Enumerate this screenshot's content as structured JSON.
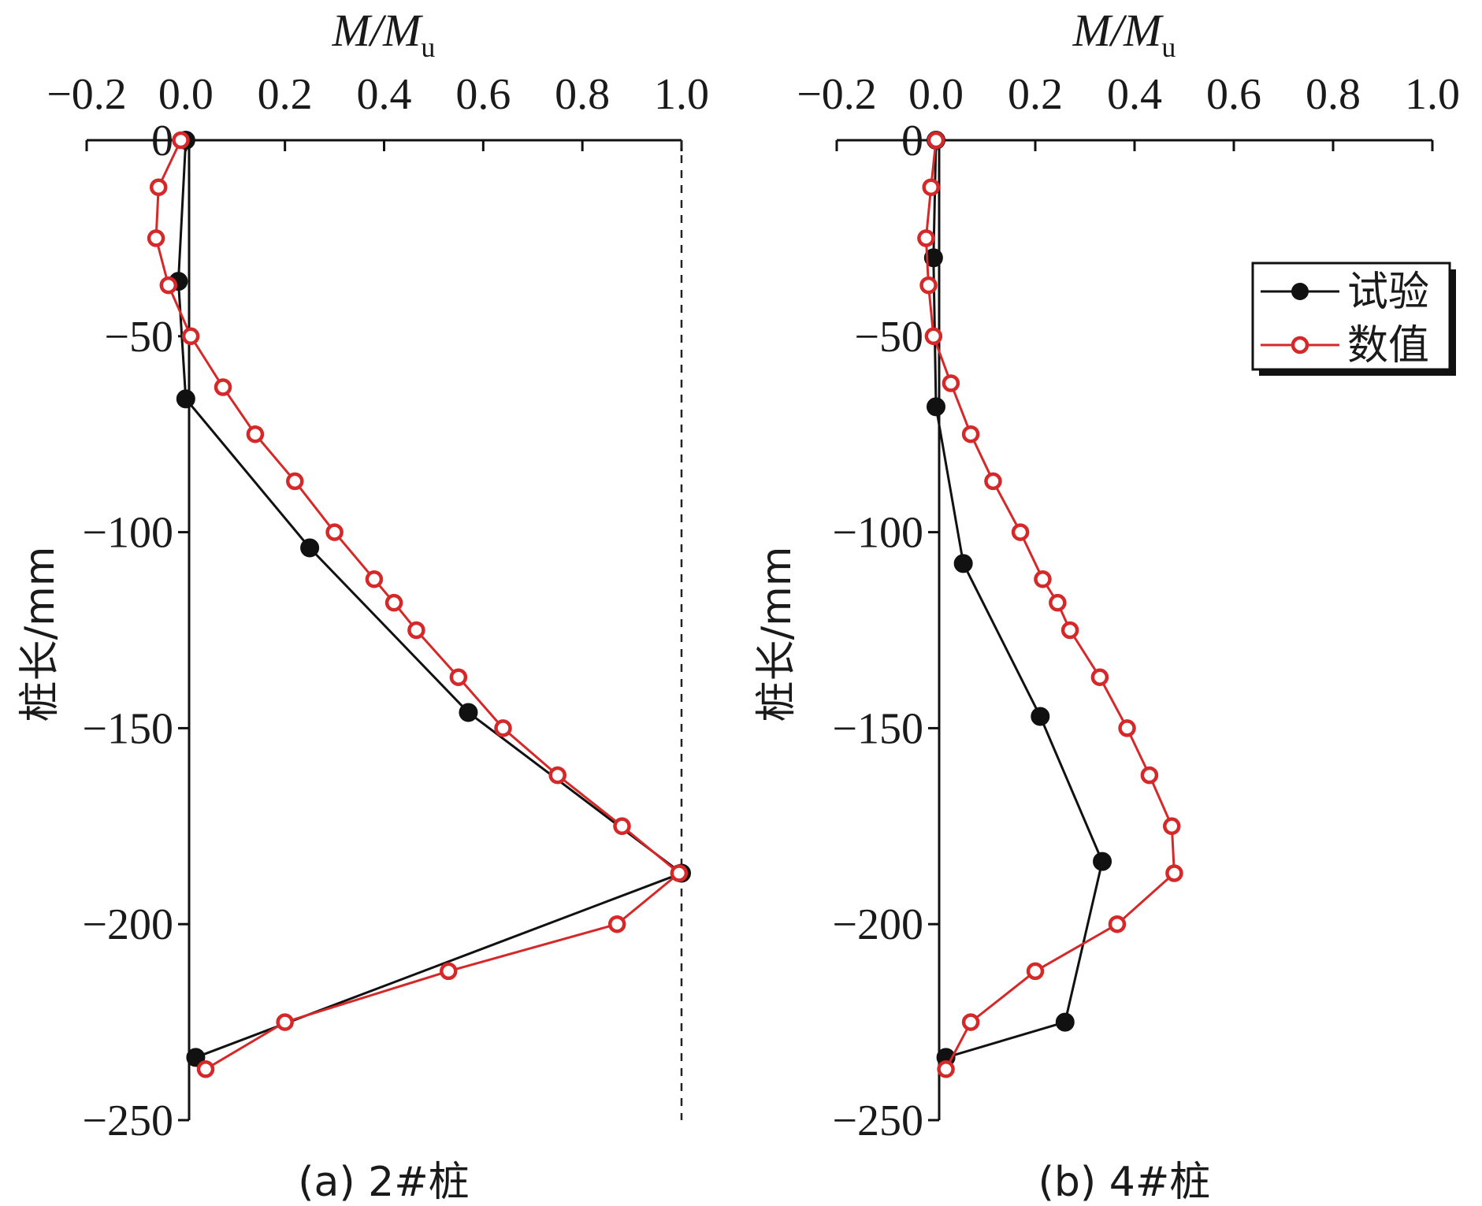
{
  "chart_data": [
    {
      "type": "line",
      "caption": "(a) 2#桩",
      "xlabel": "M/Mu",
      "ylabel": "桩长/mm",
      "xlim": [
        -0.2,
        1.0
      ],
      "ylim": [
        -250,
        0
      ],
      "x_ticks": [
        "−0.2",
        "0.0",
        "0.2",
        "0.4",
        "0.6",
        "0.8",
        "1.0"
      ],
      "y_ticks": [
        "0",
        "−50",
        "−100",
        "−150",
        "−200",
        "−250"
      ],
      "reference_line": {
        "x": 1.0,
        "style": "dashed"
      },
      "legend": false,
      "series": [
        {
          "name": "试验",
          "color": "#111111",
          "marker": "filled-circle",
          "points": [
            [
              0.0,
              0
            ],
            [
              -0.015,
              -36
            ],
            [
              0.0,
              -66
            ],
            [
              0.25,
              -104
            ],
            [
              0.57,
              -146
            ],
            [
              1.0,
              -187
            ],
            [
              0.02,
              -234
            ]
          ]
        },
        {
          "name": "数值",
          "color": "#d62828",
          "marker": "open-circle",
          "points": [
            [
              -0.01,
              0
            ],
            [
              -0.055,
              -12
            ],
            [
              -0.06,
              -25
            ],
            [
              -0.035,
              -37
            ],
            [
              0.01,
              -50
            ],
            [
              0.075,
              -63
            ],
            [
              0.14,
              -75
            ],
            [
              0.22,
              -87
            ],
            [
              0.3,
              -100
            ],
            [
              0.38,
              -112
            ],
            [
              0.42,
              -118
            ],
            [
              0.465,
              -125
            ],
            [
              0.55,
              -137
            ],
            [
              0.64,
              -150
            ],
            [
              0.75,
              -162
            ],
            [
              0.88,
              -175
            ],
            [
              0.995,
              -187
            ],
            [
              0.87,
              -200
            ],
            [
              0.53,
              -212
            ],
            [
              0.2,
              -225
            ],
            [
              0.04,
              -237
            ]
          ]
        }
      ]
    },
    {
      "type": "line",
      "caption": "(b) 4#桩",
      "xlabel": "M/Mu",
      "ylabel": "桩长/mm",
      "xlim": [
        -0.2,
        1.0
      ],
      "ylim": [
        -250,
        0
      ],
      "x_ticks": [
        "−0.2",
        "0.0",
        "0.2",
        "0.4",
        "0.6",
        "0.8",
        "1.0"
      ],
      "y_ticks": [
        "0",
        "−50",
        "−100",
        "−150",
        "−200",
        "−250"
      ],
      "legend": true,
      "legend_position": "top-right",
      "series": [
        {
          "name": "试验",
          "color": "#111111",
          "marker": "filled-circle",
          "points": [
            [
              0.0,
              0
            ],
            [
              -0.005,
              -30
            ],
            [
              0.0,
              -68
            ],
            [
              0.055,
              -108
            ],
            [
              0.21,
              -147
            ],
            [
              0.335,
              -184
            ],
            [
              0.26,
              -225
            ],
            [
              0.02,
              -234
            ]
          ]
        },
        {
          "name": "数值",
          "color": "#d62828",
          "marker": "open-circle",
          "points": [
            [
              0.0,
              0
            ],
            [
              -0.01,
              -12
            ],
            [
              -0.02,
              -25
            ],
            [
              -0.015,
              -37
            ],
            [
              -0.005,
              -50
            ],
            [
              0.03,
              -62
            ],
            [
              0.07,
              -75
            ],
            [
              0.115,
              -87
            ],
            [
              0.17,
              -100
            ],
            [
              0.215,
              -112
            ],
            [
              0.245,
              -118
            ],
            [
              0.27,
              -125
            ],
            [
              0.33,
              -137
            ],
            [
              0.385,
              -150
            ],
            [
              0.43,
              -162
            ],
            [
              0.475,
              -175
            ],
            [
              0.48,
              -187
            ],
            [
              0.365,
              -200
            ],
            [
              0.2,
              -212
            ],
            [
              0.07,
              -225
            ],
            [
              0.02,
              -237
            ]
          ]
        }
      ]
    }
  ]
}
